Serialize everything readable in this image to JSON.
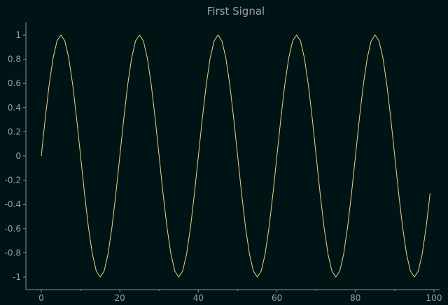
{
  "chart_data": {
    "type": "line",
    "title": "First Signal",
    "xlabel": "",
    "ylabel": "",
    "xlim": [
      0,
      100
    ],
    "ylim": [
      -1,
      1
    ],
    "xticks": [
      0,
      20,
      40,
      60,
      80,
      100
    ],
    "xtick_labels": [
      "0",
      "20",
      "40",
      "60",
      "80",
      "100"
    ],
    "yticks": [
      -1,
      -0.8,
      -0.6,
      -0.4,
      -0.2,
      0,
      0.2,
      0.4,
      0.6,
      0.8,
      1
    ],
    "ytick_labels": [
      "-1",
      "-0.8",
      "-0.6",
      "-0.4",
      "-0.2",
      "0",
      "0.2",
      "0.4",
      "0.6",
      "0.8",
      "1"
    ],
    "grid": false,
    "legend": false,
    "series": [
      {
        "color": "#e9d57c",
        "function": "sin(2*pi*x/20)",
        "x_start": 0,
        "x_end": 99,
        "x_step": 1
      }
    ]
  },
  "colors": {
    "background": "#001416",
    "axis": "#8a9090",
    "text": "#9aa0a0",
    "line": "#e9d57c"
  }
}
